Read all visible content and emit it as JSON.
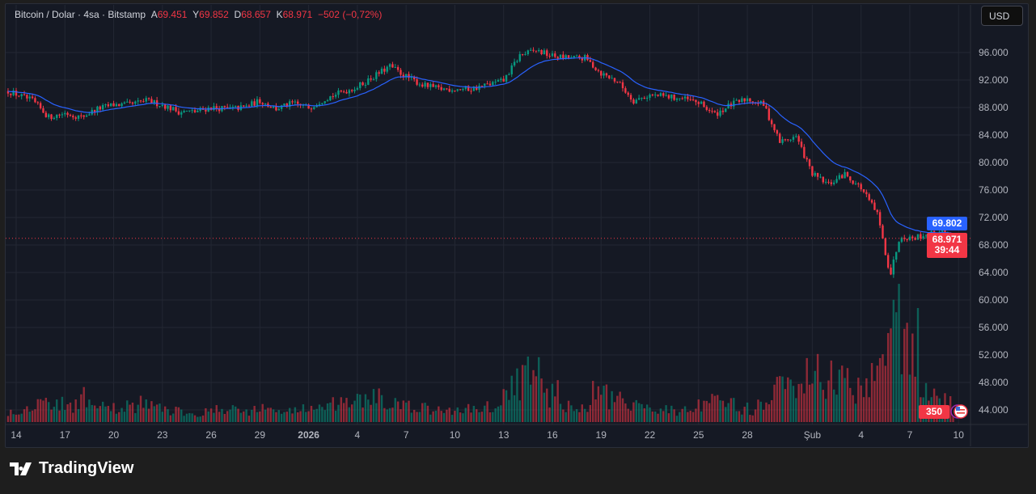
{
  "header": {
    "symbol": "Bitcoin / Dolar · 4sa · Bitstamp",
    "open_label": "A",
    "open": "69.451",
    "high_label": "Y",
    "high": "69.852",
    "low_label": "D",
    "low": "68.657",
    "close_label": "K",
    "close": "68.971",
    "change": "−502 (−0,72%)"
  },
  "currency_button": "USD",
  "brand": "TradingView",
  "colors": {
    "up": "#089981",
    "down": "#f23645",
    "ma": "#2962ff",
    "bg": "#151924"
  },
  "chart_data": {
    "type": "candlestick",
    "title": "Bitcoin / Dolar · 4sa · Bitstamp",
    "ylim": [
      42000,
      100000
    ],
    "price_ticks": [
      96000,
      92000,
      88000,
      84000,
      80000,
      76000,
      72000,
      68000,
      64000,
      60000,
      56000,
      52000,
      48000,
      44000
    ],
    "price_tick_labels": [
      "96.000",
      "92.000",
      "88.000",
      "84.000",
      "80.000",
      "76.000",
      "72.000",
      "68.000",
      "64.000",
      "60.000",
      "56.000",
      "52.000",
      "48.000",
      "44.000"
    ],
    "x_ticks": [
      {
        "day": 0,
        "label": "14"
      },
      {
        "day": 3,
        "label": "17"
      },
      {
        "day": 6,
        "label": "20"
      },
      {
        "day": 9,
        "label": "23"
      },
      {
        "day": 12,
        "label": "26"
      },
      {
        "day": 15,
        "label": "29"
      },
      {
        "day": 18,
        "label": "2026"
      },
      {
        "day": 21,
        "label": "4"
      },
      {
        "day": 24,
        "label": "7"
      },
      {
        "day": 27,
        "label": "10"
      },
      {
        "day": 30,
        "label": "13"
      },
      {
        "day": 33,
        "label": "16"
      },
      {
        "day": 36,
        "label": "19"
      },
      {
        "day": 39,
        "label": "22"
      },
      {
        "day": 42,
        "label": "25"
      },
      {
        "day": 45,
        "label": "28"
      },
      {
        "day": 49,
        "label": "Şub"
      },
      {
        "day": 52,
        "label": "4"
      },
      {
        "day": 55,
        "label": "7"
      },
      {
        "day": 58,
        "label": "10"
      }
    ],
    "close_path": [
      [
        -0.5,
        90400
      ],
      [
        1,
        89000
      ],
      [
        2,
        86600
      ],
      [
        3,
        87200
      ],
      [
        4,
        86600
      ],
      [
        5,
        87800
      ],
      [
        6,
        88400
      ],
      [
        7,
        88400
      ],
      [
        8,
        89000
      ],
      [
        9,
        88400
      ],
      [
        10,
        87400
      ],
      [
        11,
        87400
      ],
      [
        12,
        88000
      ],
      [
        13,
        87800
      ],
      [
        14,
        88000
      ],
      [
        15,
        89000
      ],
      [
        16,
        87800
      ],
      [
        17,
        88600
      ],
      [
        18,
        88000
      ],
      [
        19,
        89300
      ],
      [
        20,
        90200
      ],
      [
        21,
        91000
      ],
      [
        22,
        92500
      ],
      [
        23,
        94000
      ],
      [
        24,
        92500
      ],
      [
        25,
        91300
      ],
      [
        26,
        90700
      ],
      [
        27,
        90700
      ],
      [
        28,
        90700
      ],
      [
        29,
        91300
      ],
      [
        30,
        91900
      ],
      [
        31,
        95600
      ],
      [
        32,
        96300
      ],
      [
        33,
        95500
      ],
      [
        34,
        95200
      ],
      [
        35,
        95200
      ],
      [
        36,
        93000
      ],
      [
        37,
        91800
      ],
      [
        38,
        89000
      ],
      [
        39,
        89800
      ],
      [
        40,
        89600
      ],
      [
        41,
        89300
      ],
      [
        42,
        88700
      ],
      [
        43,
        87000
      ],
      [
        44,
        88400
      ],
      [
        45,
        89300
      ],
      [
        46,
        88400
      ],
      [
        47,
        83000
      ],
      [
        48,
        83800
      ],
      [
        49,
        78300
      ],
      [
        50,
        76800
      ],
      [
        51,
        78300
      ],
      [
        52,
        76300
      ],
      [
        53,
        72500
      ],
      [
        53.8,
        63600
      ],
      [
        54.4,
        69500
      ],
      [
        55,
        69000
      ],
      [
        56,
        69500
      ],
      [
        57,
        70000
      ],
      [
        57.8,
        68971
      ]
    ],
    "daily_volume_rel": [
      12,
      20,
      22,
      18,
      25,
      15,
      14,
      18,
      20,
      14,
      12,
      10,
      12,
      14,
      12,
      14,
      12,
      12,
      15,
      14,
      18,
      22,
      25,
      20,
      16,
      14,
      12,
      12,
      14,
      16,
      25,
      45,
      48,
      30,
      18,
      14,
      30,
      22,
      16,
      16,
      14,
      12,
      16,
      20,
      18,
      14,
      16,
      35,
      30,
      50,
      45,
      40,
      38,
      60,
      100,
      85,
      30,
      22,
      16,
      14
    ],
    "ma_label": "69.802",
    "last_price_label": "68.971",
    "countdown": "39:44",
    "volume_label": "350"
  }
}
